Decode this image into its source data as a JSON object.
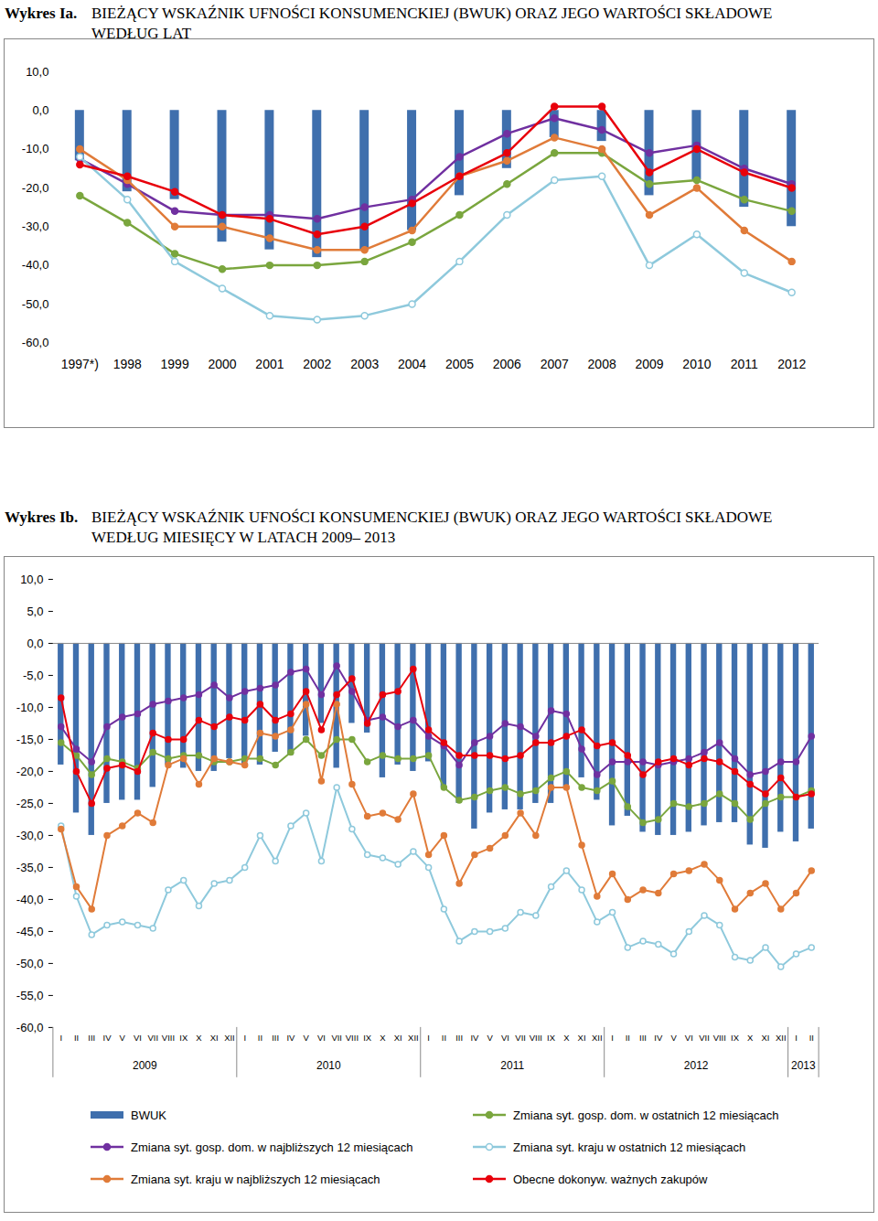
{
  "chart_data": [
    {
      "type": "bar",
      "figure_label": "Wykres Ia.",
      "title": "BIEŻĄCY WSKAŹNIK UFNOŚCI KONSUMENCKIEJ (BWUK) ORAZ JEGO WARTOŚCI SKŁADOWE WEDŁUG LAT",
      "categories": [
        "1997*)",
        "1998",
        "1999",
        "2000",
        "2001",
        "2002",
        "2003",
        "2004",
        "2005",
        "2006",
        "2007",
        "2008",
        "2009",
        "2010",
        "2011",
        "2012"
      ],
      "series": [
        {
          "type": "bar",
          "color": "#3f6fad",
          "values": [
            -13,
            -21,
            -23,
            -34,
            -36,
            -38,
            -36,
            -31,
            -22,
            -15,
            -7,
            -8,
            -22,
            -18,
            -25,
            -30
          ]
        },
        {
          "type": "line",
          "color": "#7aa63e",
          "marker": "circle",
          "values": [
            -22,
            -29,
            -37,
            -41,
            -40,
            -40,
            -39,
            -34,
            -27,
            -19,
            -11,
            -11,
            -19,
            -18,
            -23,
            -26
          ]
        },
        {
          "type": "line",
          "color": "#7030a0",
          "marker": "circle",
          "values": [
            -12.5,
            -19,
            -26,
            -27,
            -27,
            -28,
            -25,
            -23,
            -12,
            -6,
            -2,
            -5,
            -11,
            -9,
            -15,
            -19
          ]
        },
        {
          "type": "line",
          "color": "#8ec9dc",
          "marker": "circle-open",
          "values": [
            -12,
            -23,
            -39,
            -46,
            -53,
            -54,
            -53,
            -50,
            -39,
            -27,
            -18,
            -17,
            -40,
            -32,
            -42,
            -47
          ]
        },
        {
          "type": "line",
          "color": "#e07b39",
          "marker": "circle",
          "values": [
            -10,
            -18,
            -30,
            -30,
            -33,
            -36,
            -36,
            -31,
            -17,
            -13,
            -7,
            -10,
            -27,
            -20,
            -31,
            -39
          ]
        },
        {
          "type": "line",
          "color": "#e8000b",
          "marker": "circle",
          "values": [
            -14,
            -17,
            -21,
            -27,
            -28,
            -32,
            -30,
            -24,
            -17,
            -11,
            1,
            1,
            -16,
            -10,
            -16,
            -20
          ]
        }
      ],
      "ylim": [
        -60,
        10
      ],
      "yticks": [
        {
          "value": -60,
          "label": "-60,0"
        },
        {
          "value": -50,
          "label": "-50,0"
        },
        {
          "value": -40,
          "label": "-40,0"
        },
        {
          "value": -30,
          "label": "-30,0"
        },
        {
          "value": -20,
          "label": "-20,0"
        },
        {
          "value": -10,
          "label": "-10,0"
        },
        {
          "value": 0,
          "label": "0,0"
        },
        {
          "value": 10,
          "label": "10,0"
        }
      ],
      "grid": false
    },
    {
      "type": "bar",
      "figure_label": "Wykres Ib.",
      "title": "BIEŻĄCY WSKAŹNIK UFNOŚCI KONSUMENCKIEJ (BWUK) ORAZ JEGO WARTOŚCI SKŁADOWE WEDŁUG MIESIĘCY W LATACH 2009– 2013",
      "categories": [
        "I",
        "II",
        "III",
        "IV",
        "V",
        "VI",
        "VII",
        "VIII",
        "IX",
        "X",
        "XI",
        "XII",
        "I",
        "II",
        "III",
        "IV",
        "V",
        "VI",
        "VII",
        "VIII",
        "IX",
        "X",
        "XI",
        "XII",
        "I",
        "II",
        "III",
        "IV",
        "V",
        "VI",
        "VII",
        "VIII",
        "IX",
        "X",
        "XI",
        "XII",
        "I",
        "II",
        "III",
        "IV",
        "V",
        "VI",
        "VII",
        "VIII",
        "IX",
        "X",
        "XI",
        "XII",
        "I",
        "II"
      ],
      "year_groups": [
        {
          "label": "2009",
          "from": 0,
          "to": 11
        },
        {
          "label": "2010",
          "from": 12,
          "to": 23
        },
        {
          "label": "2011",
          "from": 24,
          "to": 35
        },
        {
          "label": "2012",
          "from": 36,
          "to": 47
        },
        {
          "label": "2013",
          "from": 48,
          "to": 49
        }
      ],
      "series": [
        {
          "name": "BWUK",
          "type": "bar",
          "color": "#3f6fad",
          "values": [
            -19,
            -26.5,
            -30,
            -25,
            -24.5,
            -24.5,
            -22.5,
            -19,
            -19.5,
            -20,
            -20,
            -18,
            -19,
            -19,
            -17,
            -17.5,
            -14.5,
            -12.5,
            -19.5,
            -12.5,
            -14,
            -21,
            -19,
            -20,
            -18.5,
            -22.5,
            -25,
            -29,
            -26.5,
            -26,
            -26,
            -25,
            -25,
            -22.5,
            -21,
            -24.5,
            -28.5,
            -27,
            -29.5,
            -30,
            -30,
            -29.5,
            -28.5,
            -28,
            -28,
            -31.5,
            -32,
            -29.5,
            -31,
            -29
          ]
        },
        {
          "name": "Zmiana syt. gosp. dom. w ostatnich 12 miesiącach",
          "type": "line",
          "color": "#7aa63e",
          "marker": "circle",
          "values": [
            -15.5,
            -17.5,
            -20.5,
            -18,
            -18.5,
            -19.5,
            -17,
            -18,
            -17.5,
            -17.5,
            -18.5,
            -18.5,
            -18,
            -18,
            -19,
            -17,
            -15,
            -17.5,
            -15,
            -15,
            -18.5,
            -17.5,
            -18,
            -18,
            -17.5,
            -22.5,
            -24.5,
            -24,
            -23,
            -22.5,
            -23.5,
            -23,
            -21,
            -20,
            -22.5,
            -23,
            -21.5,
            -25.5,
            -28,
            -27.5,
            -25,
            -25.5,
            -25,
            -23.5,
            -25,
            -27.5,
            -25,
            -24,
            -24,
            -23
          ]
        },
        {
          "name": "Zmiana syt. gosp. dom. w najbliższych 12 miesiącach",
          "type": "line",
          "color": "#7030a0",
          "marker": "circle",
          "values": [
            -13,
            -16.5,
            -18.5,
            -13,
            -11.5,
            -11,
            -9.5,
            -9,
            -8.5,
            -8,
            -6.5,
            -8.5,
            -7.5,
            -7,
            -6.5,
            -4.5,
            -4,
            -8,
            -3.5,
            -7.5,
            -12,
            -11.5,
            -13,
            -12,
            -14.5,
            -16,
            -19,
            -15.5,
            -14.5,
            -12.5,
            -13,
            -14.5,
            -10.5,
            -11,
            -16.5,
            -20.5,
            -18.5,
            -18.5,
            -18.5,
            -19,
            -18.5,
            -18,
            -17,
            -15.5,
            -18,
            -20.5,
            -20,
            -18.5,
            -18.5,
            -14.5
          ]
        },
        {
          "name": "Zmiana syt. kraju w ostatnich 12 miesiącach",
          "type": "line",
          "color": "#8ec9dc",
          "marker": "circle-open",
          "values": [
            -28.5,
            -39.5,
            -45.5,
            -44,
            -43.5,
            -44,
            -44.5,
            -38.5,
            -37,
            -41,
            -37.5,
            -37,
            -35,
            -30,
            -34,
            -28.5,
            -26.5,
            -34,
            -22.5,
            -29,
            -33,
            -33.5,
            -34.5,
            -32.5,
            -35,
            -41.5,
            -46.5,
            -45,
            -45,
            -44.5,
            -42,
            -42.5,
            -38,
            -35.5,
            -38.5,
            -43.5,
            -42,
            -47.5,
            -46.5,
            -47,
            -48.5,
            -45,
            -42.5,
            -44,
            -49,
            -49.5,
            -47.5,
            -50.5,
            -48.5,
            -47.5
          ]
        },
        {
          "name": "Zmiana syt. kraju w najbliższych 12 miesiącach",
          "type": "line",
          "color": "#e07b39",
          "marker": "circle",
          "values": [
            -29,
            -38,
            -41.5,
            -30,
            -28.5,
            -26.5,
            -28,
            -19,
            -18,
            -22,
            -18,
            -18.5,
            -19,
            -14,
            -14.5,
            -13.5,
            -9.5,
            -21.5,
            -9.5,
            -22,
            -27,
            -26.5,
            -27.5,
            -23.5,
            -33,
            -30,
            -37.5,
            -33,
            -32,
            -30,
            -26.5,
            -30,
            -22.5,
            -22.5,
            -31.5,
            -39.5,
            -36,
            -40,
            -38.5,
            -39,
            -36,
            -35.5,
            -34.5,
            -37,
            -41.5,
            -39,
            -37.5,
            -41.5,
            -39,
            -35.5
          ]
        },
        {
          "name": "Obecne dokonyw. ważnych zakupów",
          "type": "line",
          "color": "#e8000b",
          "marker": "circle",
          "values": [
            -8.5,
            -20,
            -25,
            -19.5,
            -19,
            -20,
            -14,
            -15,
            -15,
            -12,
            -13,
            -11.5,
            -12,
            -9.5,
            -12,
            -11,
            -7.5,
            -13.5,
            -8,
            -5.5,
            -12.5,
            -8,
            -7.5,
            -4,
            -13.5,
            -15.5,
            -17.5,
            -17.5,
            -17.5,
            -18,
            -17.5,
            -15.5,
            -15.5,
            -14.5,
            -13.5,
            -16,
            -15.5,
            -17.5,
            -20.5,
            -18.5,
            -18,
            -19,
            -18,
            -18.5,
            -20,
            -22,
            -23.5,
            -21,
            -24,
            -23.5
          ]
        }
      ],
      "ylim": [
        -60,
        10
      ],
      "yticks": [
        {
          "value": -60,
          "label": "-60,0"
        },
        {
          "value": -55,
          "label": "-55,0"
        },
        {
          "value": -50,
          "label": "-50,0"
        },
        {
          "value": -45,
          "label": "-45,0"
        },
        {
          "value": -40,
          "label": "-40,0"
        },
        {
          "value": -35,
          "label": "-35,0"
        },
        {
          "value": -30,
          "label": "-30,0"
        },
        {
          "value": -25,
          "label": "-25,0"
        },
        {
          "value": -20,
          "label": "-20,0"
        },
        {
          "value": -15,
          "label": "-15,0"
        },
        {
          "value": -10,
          "label": "-10,0"
        },
        {
          "value": -5,
          "label": "-5,0"
        },
        {
          "value": 0,
          "label": "0,0"
        },
        {
          "value": 5,
          "label": "5,0"
        },
        {
          "value": 10,
          "label": "10,0"
        }
      ],
      "grid": false
    }
  ]
}
